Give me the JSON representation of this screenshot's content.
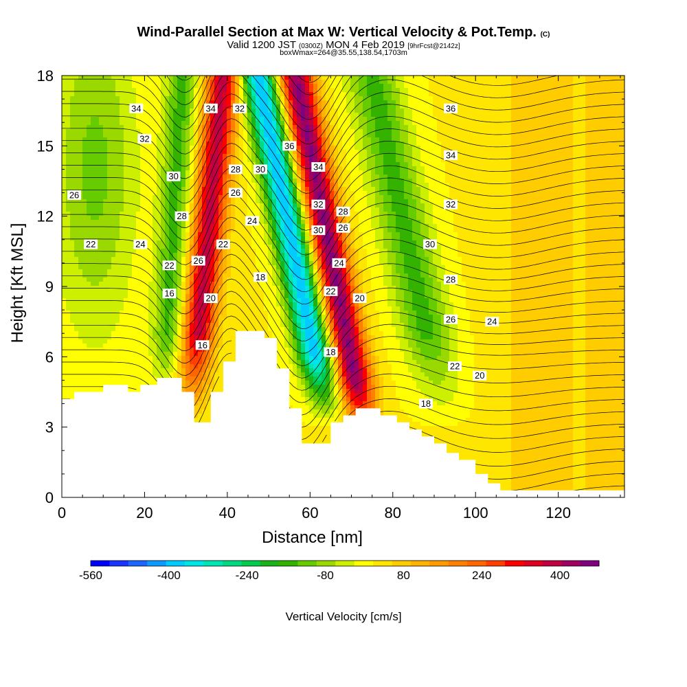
{
  "header": {
    "title": "Wind-Parallel Section at Max W: Vertical Velocity & Pot.Temp.",
    "title_mark": "(C)",
    "valid_a": "Valid 1200 JST ",
    "valid_b": "(0300Z)",
    "valid_c": " MON 4 Feb 2019 ",
    "valid_d": "[9hrFcst@2142z]",
    "subtitle2": "boxWmax=264@35.55,138.54,1703m"
  },
  "chart_data": {
    "type": "heatmap",
    "xlabel": "Distance [nm]",
    "ylabel": "Height [Kft MSL]",
    "xlim": [
      0,
      136
    ],
    "ylim": [
      0,
      18
    ],
    "x_ticks": [
      0,
      20,
      40,
      60,
      80,
      100,
      120
    ],
    "y_ticks": [
      0,
      3,
      6,
      9,
      12,
      15,
      18
    ],
    "colorbar": {
      "label": "Vertical Velocity [cm/s]",
      "tick_labels": [
        "-560",
        "-400",
        "-240",
        "-80",
        "80",
        "240",
        "400"
      ],
      "tick_values": [
        -560,
        -400,
        -240,
        -80,
        80,
        240,
        400
      ],
      "range": [
        -560,
        480
      ],
      "colors": [
        "#0000ff",
        "#1a33ff",
        "#1a66ff",
        "#0d99ff",
        "#00ccff",
        "#00e6e6",
        "#00e6b3",
        "#00d980",
        "#00cc4d",
        "#1ab31a",
        "#33b300",
        "#66cc00",
        "#99d900",
        "#ccf000",
        "#ffff00",
        "#ffe600",
        "#ffcc00",
        "#ffb300",
        "#ff9900",
        "#ff8000",
        "#ff6600",
        "#ff4000",
        "#ff0000",
        "#e00020",
        "#c00040",
        "#a00060",
        "#800080"
      ]
    },
    "terrain": [
      [
        0,
        4.2
      ],
      [
        3,
        4.2
      ],
      [
        3,
        4.5
      ],
      [
        10,
        4.5
      ],
      [
        10,
        4.8
      ],
      [
        16,
        4.8
      ],
      [
        16,
        4.5
      ],
      [
        19,
        4.5
      ],
      [
        19,
        4.8
      ],
      [
        23,
        4.8
      ],
      [
        23,
        5.1
      ],
      [
        29,
        5.1
      ],
      [
        29,
        4.5
      ],
      [
        32,
        4.5
      ],
      [
        32,
        3.2
      ],
      [
        36,
        3.2
      ],
      [
        36,
        4.5
      ],
      [
        39,
        4.5
      ],
      [
        39,
        5.8
      ],
      [
        42,
        5.8
      ],
      [
        42,
        7.1
      ],
      [
        49,
        7.1
      ],
      [
        49,
        6.8
      ],
      [
        52,
        6.8
      ],
      [
        52,
        5.5
      ],
      [
        55,
        5.5
      ],
      [
        55,
        3.8
      ],
      [
        58,
        3.8
      ],
      [
        58,
        2.3
      ],
      [
        65,
        2.3
      ],
      [
        65,
        3.2
      ],
      [
        68,
        3.2
      ],
      [
        68,
        3.5
      ],
      [
        71,
        3.5
      ],
      [
        71,
        3.8
      ],
      [
        77,
        3.8
      ],
      [
        77,
        3.5
      ],
      [
        81,
        3.5
      ],
      [
        81,
        3.2
      ],
      [
        84,
        3.2
      ],
      [
        84,
        2.9
      ],
      [
        87,
        2.9
      ],
      [
        87,
        2.6
      ],
      [
        90,
        2.6
      ],
      [
        90,
        2.3
      ],
      [
        93,
        2.3
      ],
      [
        93,
        1.9
      ],
      [
        96,
        1.9
      ],
      [
        96,
        1.6
      ],
      [
        100,
        1.6
      ],
      [
        100,
        1.0
      ],
      [
        103,
        1.0
      ],
      [
        103,
        0.6
      ],
      [
        106,
        0.6
      ],
      [
        106,
        0.3
      ],
      [
        136,
        0.3
      ]
    ],
    "vv_samples": [
      {
        "x": 20,
        "y": 11,
        "w": -140
      },
      {
        "x": 30,
        "y": 9,
        "w": -200
      },
      {
        "x": 36,
        "y": 15,
        "w": 380
      },
      {
        "x": 50,
        "y": 13,
        "w": -420
      },
      {
        "x": 62,
        "y": 12,
        "w": 440
      },
      {
        "x": 80,
        "y": 14,
        "w": -140
      },
      {
        "x": 110,
        "y": 9,
        "w": 60
      }
    ],
    "isentropes": [
      {
        "label": "16",
        "label_at": [
          26,
          8.7
        ]
      },
      {
        "label": "16",
        "label_at": [
          34,
          6.5
        ]
      },
      {
        "label": "18",
        "label_at": [
          48,
          9.4
        ]
      },
      {
        "label": "18",
        "label_at": [
          65,
          6.2
        ]
      },
      {
        "label": "18",
        "label_at": [
          88,
          4.0
        ]
      },
      {
        "label": "20",
        "label_at": [
          36,
          8.5
        ]
      },
      {
        "label": "20",
        "label_at": [
          72,
          8.5
        ]
      },
      {
        "label": "20",
        "label_at": [
          101,
          5.2
        ]
      },
      {
        "label": "22",
        "label_at": [
          7,
          10.8
        ]
      },
      {
        "label": "22",
        "label_at": [
          26,
          9.9
        ]
      },
      {
        "label": "22",
        "label_at": [
          39,
          10.8
        ]
      },
      {
        "label": "22",
        "label_at": [
          65,
          8.8
        ]
      },
      {
        "label": "22",
        "label_at": [
          95,
          5.6
        ]
      },
      {
        "label": "24",
        "label_at": [
          19,
          10.8
        ]
      },
      {
        "label": "24",
        "label_at": [
          46,
          11.8
        ]
      },
      {
        "label": "24",
        "label_at": [
          67,
          10.0
        ]
      },
      {
        "label": "24",
        "label_at": [
          104,
          7.5
        ]
      },
      {
        "label": "26",
        "label_at": [
          3,
          12.9
        ]
      },
      {
        "label": "26",
        "label_at": [
          33,
          10.1
        ]
      },
      {
        "label": "26",
        "label_at": [
          42,
          13.0
        ]
      },
      {
        "label": "26",
        "label_at": [
          68,
          11.5
        ]
      },
      {
        "label": "26",
        "label_at": [
          94,
          7.6
        ]
      },
      {
        "label": "28",
        "label_at": [
          29,
          12.0
        ]
      },
      {
        "label": "28",
        "label_at": [
          42,
          14.0
        ]
      },
      {
        "label": "28",
        "label_at": [
          68,
          12.2
        ]
      },
      {
        "label": "28",
        "label_at": [
          94,
          9.3
        ]
      },
      {
        "label": "30",
        "label_at": [
          27,
          13.7
        ]
      },
      {
        "label": "30",
        "label_at": [
          48,
          14.0
        ]
      },
      {
        "label": "30",
        "label_at": [
          62,
          11.4
        ]
      },
      {
        "label": "30",
        "label_at": [
          89,
          10.8
        ]
      },
      {
        "label": "32",
        "label_at": [
          20,
          15.3
        ]
      },
      {
        "label": "32",
        "label_at": [
          43,
          16.6
        ]
      },
      {
        "label": "32",
        "label_at": [
          62,
          12.5
        ]
      },
      {
        "label": "32",
        "label_at": [
          94,
          12.5
        ]
      },
      {
        "label": "34",
        "label_at": [
          18,
          16.6
        ]
      },
      {
        "label": "34",
        "label_at": [
          36,
          16.6
        ]
      },
      {
        "label": "34",
        "label_at": [
          62,
          14.1
        ]
      },
      {
        "label": "34",
        "label_at": [
          94,
          14.6
        ]
      },
      {
        "label": "36",
        "label_at": [
          55,
          15.0
        ]
      },
      {
        "label": "36",
        "label_at": [
          94,
          16.6
        ]
      }
    ]
  }
}
